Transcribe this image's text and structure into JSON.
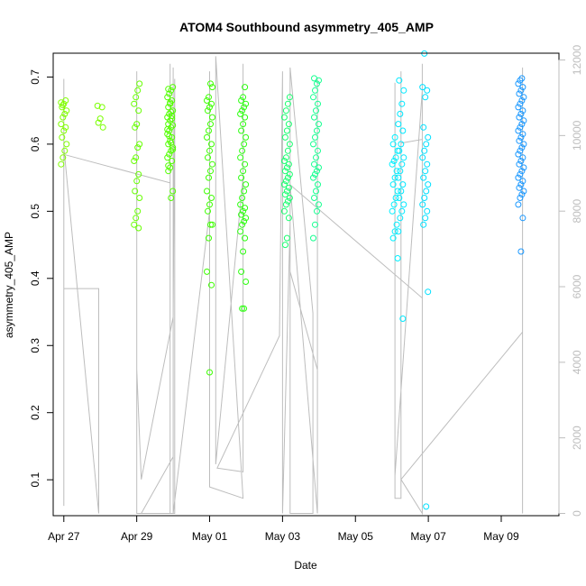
{
  "chart_data": {
    "type": "scatter",
    "title": "ATOM4 Southbound asymmetry_405_AMP",
    "xlabel": "Date",
    "ylabel": "asymmetry_405_AMP",
    "xlim": [
      "2021-04-26 17:00",
      "2021-05-10 14:00"
    ],
    "ylim": [
      0.0465,
      0.7355
    ],
    "y2lim": [
      -60,
      12180
    ],
    "x_ticks": [
      {
        "label": "Apr 27",
        "date": "2021-04-27"
      },
      {
        "label": "Apr 29",
        "date": "2021-04-29"
      },
      {
        "label": "May 01",
        "date": "2021-05-01"
      },
      {
        "label": "May 03",
        "date": "2021-05-03"
      },
      {
        "label": "May 05",
        "date": "2021-05-05"
      },
      {
        "label": "May 07",
        "date": "2021-05-07"
      },
      {
        "label": "May 09",
        "date": "2021-05-09"
      }
    ],
    "y_ticks": [
      "0.1",
      "0.2",
      "0.3",
      "0.4",
      "0.5",
      "0.6",
      "0.7"
    ],
    "y2_ticks": [
      "0",
      "2000",
      "4000",
      "6000",
      "8000",
      "10000",
      "12000"
    ],
    "grid": false,
    "legend": "none",
    "colors": {
      "secondary_line": "#bdbdbd",
      "axis": "#000000",
      "right_axis": "#bdbdbd",
      "points_start": "#80ff00",
      "points_end": "#0080ff"
    },
    "series": [
      {
        "marker": "circle-open",
        "clusters": [
          {
            "date": "2021-04-27 00:00",
            "color": "#80ff00",
            "values": [
              0.57,
              0.58,
              0.59,
              0.6,
              0.61,
              0.62,
              0.625,
              0.63,
              0.64,
              0.645,
              0.65,
              0.655,
              0.66,
              0.665,
              0.662,
              0.658
            ]
          },
          {
            "date": "2021-04-28 00:00",
            "color": "#7aff00",
            "values": [
              0.625,
              0.632,
              0.638,
              0.655,
              0.657
            ]
          },
          {
            "date": "2021-04-29 00:00",
            "color": "#66ff00",
            "values": [
              0.475,
              0.48,
              0.49,
              0.5,
              0.52,
              0.53,
              0.545,
              0.555,
              0.575,
              0.58,
              0.595,
              0.6,
              0.625,
              0.63,
              0.65,
              0.66,
              0.67,
              0.68,
              0.69
            ]
          },
          {
            "date": "2021-04-29 22:00",
            "color": "#52ff00",
            "values": [
              0.52,
              0.53,
              0.56,
              0.565,
              0.575,
              0.58,
              0.585,
              0.59,
              0.595,
              0.6,
              0.605,
              0.61,
              0.615,
              0.62,
              0.625,
              0.628,
              0.63,
              0.635,
              0.638,
              0.64,
              0.645,
              0.648,
              0.65,
              0.655,
              0.66,
              0.665,
              0.67,
              0.675,
              0.68,
              0.685,
              0.682,
              0.662,
              0.642,
              0.622,
              0.612,
              0.602,
              0.592,
              0.568
            ]
          },
          {
            "date": "2021-05-01 00:00",
            "color": "#3dff00",
            "values": [
              0.26,
              0.39,
              0.41,
              0.46,
              0.48,
              0.48,
              0.5,
              0.51,
              0.52,
              0.53,
              0.55,
              0.56,
              0.57,
              0.58,
              0.59,
              0.6,
              0.61,
              0.62,
              0.63,
              0.64,
              0.65,
              0.655,
              0.66,
              0.665,
              0.67,
              0.69,
              0.685
            ]
          },
          {
            "date": "2021-05-01 22:00",
            "color": "#2cff0f",
            "values": [
              0.355,
              0.355,
              0.395,
              0.41,
              0.44,
              0.46,
              0.47,
              0.48,
              0.485,
              0.49,
              0.495,
              0.5,
              0.505,
              0.51,
              0.52,
              0.53,
              0.54,
              0.55,
              0.56,
              0.57,
              0.58,
              0.59,
              0.6,
              0.61,
              0.62,
              0.63,
              0.64,
              0.645,
              0.65,
              0.655,
              0.66,
              0.665,
              0.67,
              0.685
            ]
          },
          {
            "date": "2021-05-03 03:00",
            "color": "#1aff70",
            "values": [
              0.45,
              0.46,
              0.49,
              0.5,
              0.51,
              0.515,
              0.52,
              0.525,
              0.53,
              0.535,
              0.54,
              0.545,
              0.55,
              0.555,
              0.56,
              0.565,
              0.57,
              0.575,
              0.58,
              0.59,
              0.6,
              0.61,
              0.62,
              0.63,
              0.64,
              0.65,
              0.66,
              0.67
            ]
          },
          {
            "date": "2021-05-03 22:00",
            "color": "#15ff90",
            "values": [
              0.46,
              0.48,
              0.5,
              0.51,
              0.52,
              0.53,
              0.54,
              0.55,
              0.555,
              0.56,
              0.565,
              0.57,
              0.58,
              0.59,
              0.6,
              0.61,
              0.62,
              0.63,
              0.64,
              0.65,
              0.66,
              0.67,
              0.68,
              0.69,
              0.695,
              0.698
            ]
          },
          {
            "date": "2021-05-06 02:00",
            "color": "#00f0ff",
            "values": [
              0.43,
              0.46,
              0.47,
              0.48,
              0.5,
              0.51,
              0.52,
              0.53,
              0.54,
              0.55,
              0.56,
              0.57,
              0.575,
              0.58,
              0.59,
              0.6,
              0.61
            ]
          },
          {
            "date": "2021-05-06 06:00",
            "color": "#00e8ff",
            "values": [
              0.34,
              0.47,
              0.49,
              0.5,
              0.51,
              0.52,
              0.53,
              0.54,
              0.55,
              0.56,
              0.57,
              0.58,
              0.59,
              0.6,
              0.62,
              0.63,
              0.645,
              0.66,
              0.68,
              0.695
            ]
          },
          {
            "date": "2021-05-06 22:00",
            "color": "#00e0ff",
            "values": [
              0.06,
              0.38,
              0.48,
              0.49,
              0.5,
              0.51,
              0.52,
              0.53,
              0.54,
              0.55,
              0.56,
              0.57,
              0.58,
              0.59,
              0.6,
              0.61,
              0.625,
              0.67,
              0.68,
              0.685,
              0.735
            ]
          },
          {
            "date": "2021-05-09 13:00",
            "color": "#1a98ff",
            "values": [
              0.44,
              0.49,
              0.51,
              0.52,
              0.525,
              0.53,
              0.535,
              0.54,
              0.545,
              0.55,
              0.555,
              0.56,
              0.565,
              0.57,
              0.575,
              0.58,
              0.585,
              0.59,
              0.595,
              0.6,
              0.605,
              0.61,
              0.615,
              0.62,
              0.625,
              0.63,
              0.635,
              0.64,
              0.645,
              0.65,
              0.655,
              0.66,
              0.665,
              0.67,
              0.675,
              0.68,
              0.685,
              0.69,
              0.695,
              0.698
            ]
          }
        ]
      },
      {
        "axis": "right",
        "style": "line",
        "color": "#bdbdbd",
        "points": [
          [
            "2021-04-27 00:00",
            9500
          ],
          [
            "2021-04-27 00:00",
            200
          ],
          [
            "2021-04-27 00:00",
            5950
          ],
          [
            "2021-04-27 23:00",
            5950
          ],
          [
            "2021-04-27 23:00",
            0
          ],
          [
            "2021-04-27 00:00",
            9700
          ],
          [
            "2021-04-27 00:00",
            11500
          ],
          [
            "2021-04-27 00:00",
            9500
          ],
          [
            "2021-04-29 22:00",
            8750
          ],
          [
            "2021-04-29 22:00",
            11900
          ],
          [
            "2021-04-29 22:00",
            0
          ],
          [
            "2021-04-29 00:00",
            0
          ],
          [
            "2021-04-29 00:00",
            11700
          ],
          [
            "2021-04-29 00:00",
            3800
          ],
          [
            "2021-04-29 03:00",
            900
          ],
          [
            "2021-04-30 00:00",
            5200
          ],
          [
            "2021-04-30 01:00",
            11500
          ],
          [
            "2021-04-30 01:00",
            0
          ],
          [
            "2021-04-29 03:00",
            0
          ],
          [
            "2021-04-30 00:00",
            1500
          ],
          [
            "2021-04-30 00:00",
            11800
          ],
          [
            "2021-04-30 00:00",
            0
          ],
          [
            "2021-05-01 00:00",
            8000
          ],
          [
            "2021-05-01 00:00",
            11700
          ],
          [
            "2021-05-01 00:00",
            700
          ],
          [
            "2021-05-01 22:00",
            400
          ],
          [
            "2021-05-01 04:00",
            12100
          ],
          [
            "2021-05-01 04:00",
            1300
          ],
          [
            "2021-05-01 22:00",
            8900
          ],
          [
            "2021-05-01 22:00",
            11900
          ],
          [
            "2021-05-01 22:00",
            1100
          ],
          [
            "2021-05-01 05:00",
            1200
          ],
          [
            "2021-05-02 22:00",
            4700
          ],
          [
            "2021-05-03 00:00",
            11700
          ],
          [
            "2021-05-03 00:00",
            0
          ],
          [
            "2021-05-03 05:00",
            7700
          ],
          [
            "2021-05-03 05:00",
            11500
          ],
          [
            "2021-05-03 05:00",
            0
          ],
          [
            "2021-05-03 20:00",
            0
          ],
          [
            "2021-05-03 20:00",
            5300
          ],
          [
            "2021-05-03 05:00",
            11800
          ],
          [
            "2021-05-03 05:00",
            6400
          ],
          [
            "2021-05-03 23:00",
            3800
          ],
          [
            "2021-05-03 23:00",
            11500
          ],
          [
            "2021-05-03 23:00",
            0
          ],
          [
            "2021-05-03 05:00",
            8700
          ],
          [
            "2021-05-06 20:00",
            5700
          ],
          [
            "2021-05-06 20:00",
            11200
          ],
          [
            "2021-05-06 02:00",
            1000
          ],
          [
            "2021-05-06 02:00",
            11400
          ],
          [
            "2021-05-06 02:00",
            400
          ],
          [
            "2021-05-06 06:00",
            400
          ],
          [
            "2021-05-06 06:00",
            11700
          ],
          [
            "2021-05-06 06:00",
            9800
          ],
          [
            "2021-05-06 20:00",
            9900
          ],
          [
            "2021-05-06 20:00",
            11900
          ],
          [
            "2021-05-06 20:00",
            0
          ],
          [
            "2021-05-06 06:00",
            900
          ],
          [
            "2021-05-09 14:00",
            4800
          ],
          [
            "2021-05-09 14:00",
            11800
          ],
          [
            "2021-05-09 14:00",
            0
          ]
        ]
      }
    ]
  }
}
